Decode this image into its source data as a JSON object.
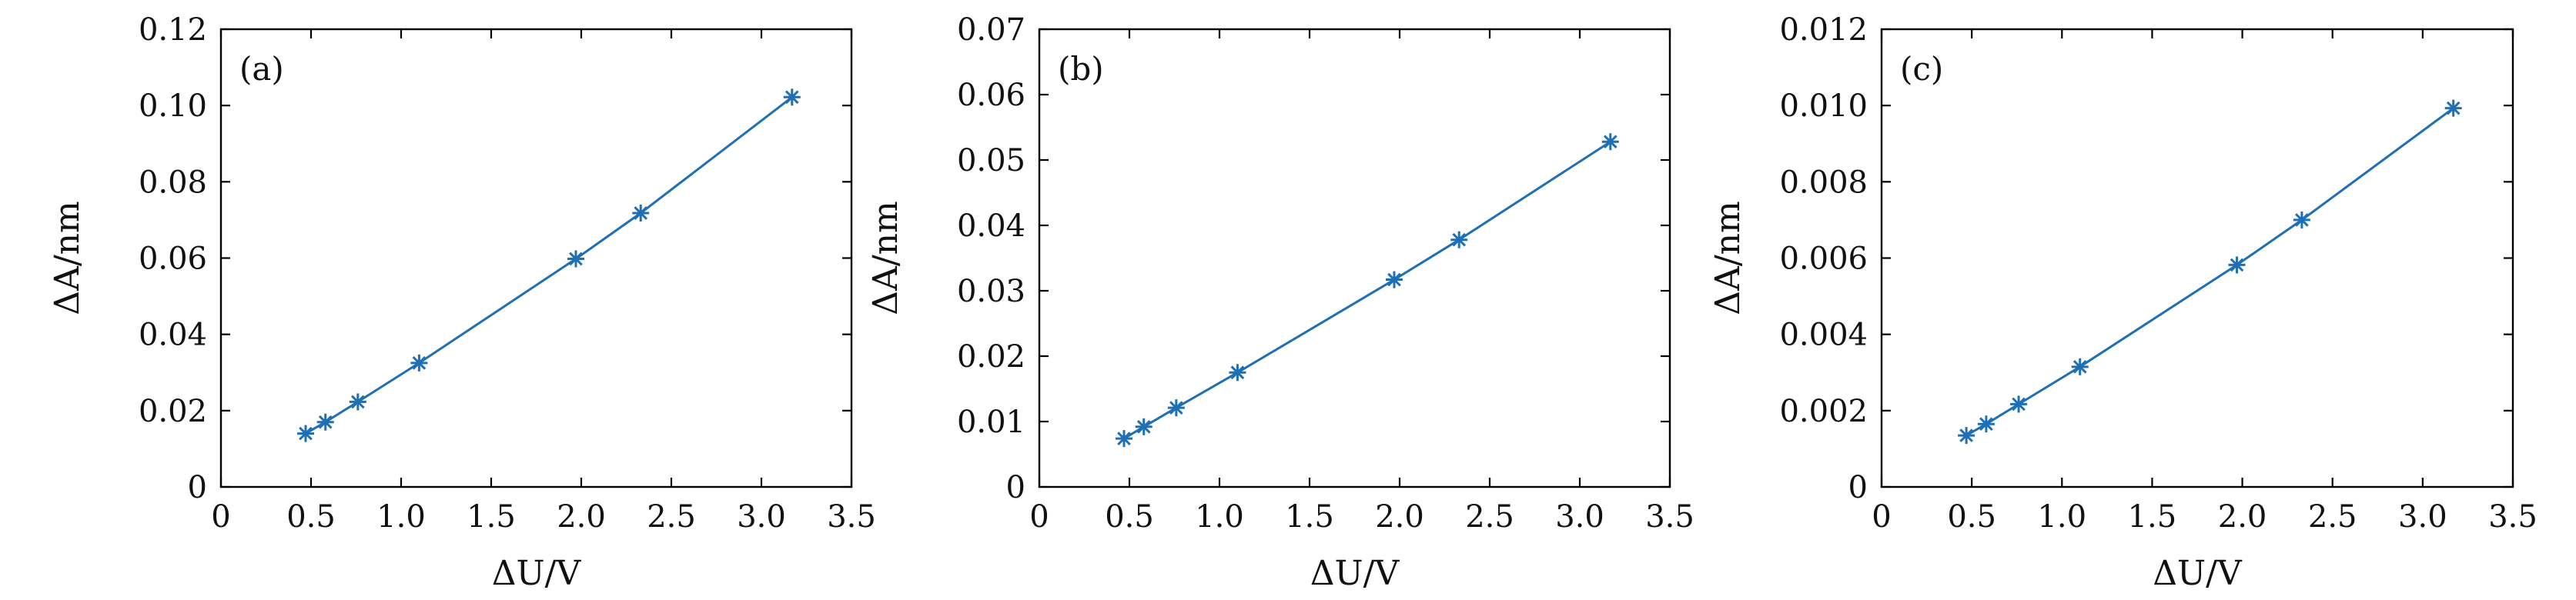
{
  "chart_data": [
    {
      "type": "line",
      "label": "(a)",
      "xlabel": "ΔU/V",
      "ylabel": "ΔA/nm",
      "xlim": [
        0,
        3.5
      ],
      "ylim": [
        0,
        0.12
      ],
      "xticks": [
        "0",
        "0.5",
        "1.0",
        "1.5",
        "2.0",
        "2.5",
        "3.0",
        "3.5"
      ],
      "yticks": [
        "0",
        "0.02",
        "0.04",
        "0.06",
        "0.08",
        "0.10",
        "0.12"
      ],
      "grid": false,
      "series": [
        {
          "x": [
            0.47,
            0.58,
            0.76,
            1.1,
            1.97,
            2.33,
            3.17
          ],
          "y": [
            0.014,
            0.017,
            0.0223,
            0.0325,
            0.0598,
            0.0718,
            0.1022
          ]
        }
      ]
    },
    {
      "type": "line",
      "label": "(b)",
      "xlabel": "ΔU/V",
      "ylabel": "ΔA/nm",
      "xlim": [
        0,
        3.5
      ],
      "ylim": [
        0,
        0.07
      ],
      "xticks": [
        "0",
        "0.5",
        "1.0",
        "1.5",
        "2.0",
        "2.5",
        "3.0",
        "3.5"
      ],
      "yticks": [
        "0",
        "0.01",
        "0.02",
        "0.03",
        "0.04",
        "0.05",
        "0.06",
        "0.07"
      ],
      "grid": false,
      "series": [
        {
          "x": [
            0.47,
            0.58,
            0.76,
            1.1,
            1.97,
            2.33,
            3.17
          ],
          "y": [
            0.0074,
            0.0092,
            0.0121,
            0.0175,
            0.0317,
            0.0378,
            0.0528
          ]
        }
      ]
    },
    {
      "type": "line",
      "label": "(c)",
      "xlabel": "ΔU/V",
      "ylabel": "ΔA/nm",
      "xlim": [
        0,
        3.5
      ],
      "ylim": [
        0,
        0.012
      ],
      "xticks": [
        "0",
        "0.5",
        "1.0",
        "1.5",
        "2.0",
        "2.5",
        "3.0",
        "3.5"
      ],
      "yticks": [
        "0",
        "0.002",
        "0.004",
        "0.006",
        "0.008",
        "0.010",
        "0.012"
      ],
      "grid": false,
      "series": [
        {
          "x": [
            0.47,
            0.58,
            0.76,
            1.1,
            1.97,
            2.33,
            3.17
          ],
          "y": [
            0.00135,
            0.00165,
            0.00217,
            0.00315,
            0.00582,
            0.007,
            0.00993
          ]
        }
      ]
    }
  ],
  "colors": {
    "series": "#1f6fb4",
    "axis": "#000000"
  },
  "marker_icon": "asterisk-marker-icon"
}
